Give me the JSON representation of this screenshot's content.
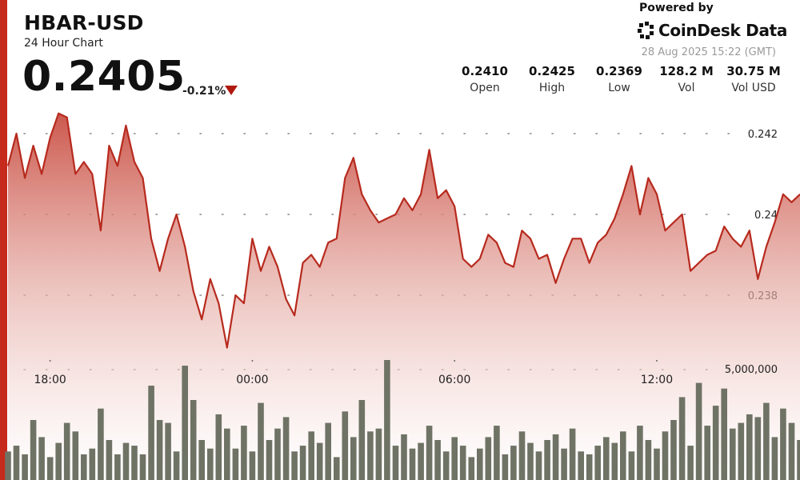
{
  "header": {
    "pair": "HBAR-USD",
    "subtitle": "24 Hour Chart",
    "price": "0.2405",
    "change": "-0.21%"
  },
  "branding": {
    "powered_by": "Powered by",
    "name": "CoinDesk Data",
    "timestamp": "28 Aug 2025 15:22 (GMT)"
  },
  "stats": [
    {
      "value": "0.2410",
      "label": "Open"
    },
    {
      "value": "0.2425",
      "label": "High"
    },
    {
      "value": "0.2369",
      "label": "Low"
    },
    {
      "value": "128.2 M",
      "label": "Vol"
    },
    {
      "value": "30.75 M",
      "label": "Vol USD"
    }
  ],
  "colors": {
    "accent": "#c62a1c",
    "line": "#b72a1e",
    "down_arrow": "#b0180f",
    "volume_bar": "#6f7365"
  },
  "chart_data": {
    "type": "line",
    "x_ticks": [
      "18:00",
      "00:00",
      "06:00",
      "12:00"
    ],
    "x_tick_pos": [
      5,
      29,
      53,
      77
    ],
    "y_ticks": [
      0.242,
      0.24,
      0.238
    ],
    "y_tick_labels": [
      "0.242",
      "0.24",
      "0.238"
    ],
    "ylim": [
      0.2351,
      0.2435
    ],
    "volume_tick_label": "5,000,000",
    "volume_tick_value": 5000000,
    "volume_max": 7000000,
    "x": [
      0,
      1,
      2,
      3,
      4,
      5,
      6,
      7,
      8,
      9,
      10,
      11,
      12,
      13,
      14,
      15,
      16,
      17,
      18,
      19,
      20,
      21,
      22,
      23,
      24,
      25,
      26,
      27,
      28,
      29,
      30,
      31,
      32,
      33,
      34,
      35,
      36,
      37,
      38,
      39,
      40,
      41,
      42,
      43,
      44,
      45,
      46,
      47,
      48,
      49,
      50,
      51,
      52,
      53,
      54,
      55,
      56,
      57,
      58,
      59,
      60,
      61,
      62,
      63,
      64,
      65,
      66,
      67,
      68,
      69,
      70,
      71,
      72,
      73,
      74,
      75,
      76,
      77,
      78,
      79,
      80,
      81,
      82,
      83,
      84,
      85,
      86,
      87,
      88,
      89,
      90,
      91,
      92,
      93,
      94
    ],
    "price": [
      0.2412,
      0.242,
      0.2409,
      0.2417,
      0.241,
      0.2419,
      0.2425,
      0.2424,
      0.241,
      0.2413,
      0.241,
      0.2396,
      0.2417,
      0.2412,
      0.2422,
      0.2413,
      0.2409,
      0.2394,
      0.2386,
      0.2394,
      0.24,
      0.2392,
      0.2381,
      0.2374,
      0.2384,
      0.2378,
      0.2367,
      0.238,
      0.2378,
      0.2394,
      0.2386,
      0.2392,
      0.2387,
      0.2379,
      0.2375,
      0.2388,
      0.239,
      0.2387,
      0.2393,
      0.2394,
      0.2409,
      0.2414,
      0.2405,
      0.2401,
      0.2398,
      0.2399,
      0.24,
      0.2404,
      0.2401,
      0.2405,
      0.2416,
      0.2404,
      0.2406,
      0.2402,
      0.2389,
      0.2387,
      0.2389,
      0.2395,
      0.2393,
      0.2388,
      0.2387,
      0.2396,
      0.2394,
      0.2389,
      0.239,
      0.2383,
      0.2389,
      0.2394,
      0.2394,
      0.2388,
      0.2393,
      0.2395,
      0.2399,
      0.2405,
      0.2412,
      0.24,
      0.2409,
      0.2405,
      0.2396,
      0.2398,
      0.24,
      0.2386,
      0.2388,
      0.239,
      0.2391,
      0.2397,
      0.2394,
      0.2392,
      0.2396,
      0.2384,
      0.2392,
      0.2398,
      0.2405,
      0.2403,
      0.2405
    ],
    "volume": [
      1000000,
      1200000,
      900000,
      2100000,
      1500000,
      800000,
      1300000,
      2000000,
      1700000,
      900000,
      1100000,
      2500000,
      1400000,
      900000,
      1300000,
      1200000,
      900000,
      3300000,
      2100000,
      2000000,
      1000000,
      4000000,
      2800000,
      1400000,
      1100000,
      2300000,
      1800000,
      1100000,
      1900000,
      1000000,
      2700000,
      1400000,
      1800000,
      2200000,
      1000000,
      1200000,
      1700000,
      1300000,
      2000000,
      800000,
      2400000,
      1500000,
      2800000,
      1700000,
      1800000,
      4200000,
      1200000,
      1600000,
      1100000,
      1300000,
      1900000,
      1400000,
      1000000,
      1500000,
      1200000,
      800000,
      1100000,
      1500000,
      1900000,
      900000,
      1200000,
      1700000,
      1300000,
      1000000,
      1400000,
      1600000,
      1100000,
      1800000,
      1000000,
      900000,
      1200000,
      1500000,
      1300000,
      1700000,
      1000000,
      1900000,
      1400000,
      1100000,
      1700000,
      2100000,
      2900000,
      1200000,
      3400000,
      1900000,
      2600000,
      3200000,
      1800000,
      2000000,
      2300000,
      2200000,
      2700000,
      1500000,
      2500000,
      2000000,
      1400000
    ]
  }
}
